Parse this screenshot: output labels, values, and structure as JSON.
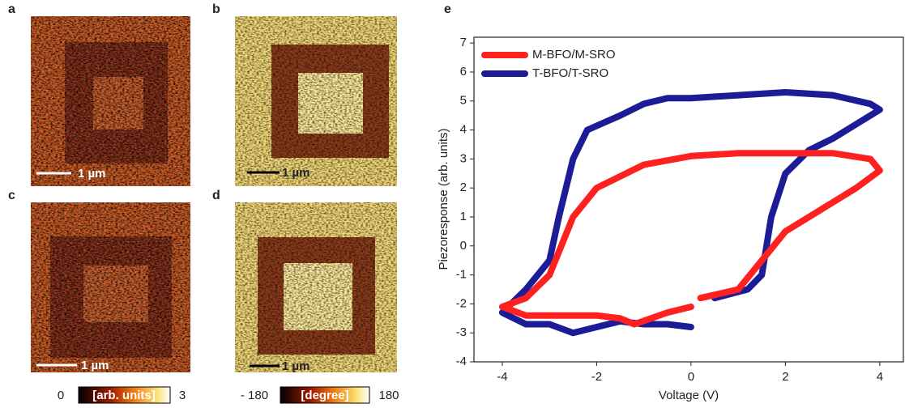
{
  "panels": [
    {
      "label": "a",
      "scale_bar": "1 µm"
    },
    {
      "label": "b",
      "scale_bar": "1 µm"
    },
    {
      "label": "c",
      "scale_bar": "1 µm"
    },
    {
      "label": "d",
      "scale_bar": "1 µm"
    }
  ],
  "colorbars": [
    {
      "min": 0,
      "label": "[arb. units]",
      "max": 3
    },
    {
      "min": {
        "value": -180,
        "label": "- 180"
      },
      "label": "[degree]",
      "max": 180
    }
  ],
  "chart_data": {
    "type": "line",
    "panel_label": "e",
    "x_label": "Voltage (V)",
    "y_label": "Piezoresponse (arb. units)",
    "xlim": [
      -4.6,
      4.5
    ],
    "ylim": [
      -4,
      7.2
    ],
    "xticks": [
      -4,
      -2,
      0,
      2,
      4
    ],
    "yticks": [
      -4,
      -3,
      -2,
      -1,
      0,
      1,
      2,
      3,
      4,
      5,
      6,
      7
    ],
    "legend": "upper left",
    "series": [
      {
        "name": "M-BFO/M-SRO",
        "color": "#ff2020",
        "x": [
          0.2,
          1,
          1.5,
          2,
          2.5,
          3,
          3.5,
          4,
          3.8,
          3,
          2,
          1,
          0,
          -1,
          -2,
          -2.5,
          -3,
          -3.5,
          -4,
          -3.5,
          -3,
          -2,
          -1.5,
          -1.2,
          -0.5,
          0
        ],
        "values": [
          -1.8,
          -1.5,
          -0.5,
          0.5,
          1,
          1.5,
          2,
          2.6,
          3,
          3.2,
          3.2,
          3.2,
          3.1,
          2.8,
          2,
          1,
          -1,
          -1.8,
          -2.1,
          -2.4,
          -2.4,
          -2.4,
          -2.5,
          -2.7,
          -2.3,
          -2.1
        ]
      },
      {
        "name": "T-BFO/T-SRO",
        "color": "#1c1c96",
        "x": [
          0,
          -0.5,
          -1,
          -1.5,
          -2,
          -2.5,
          -3,
          -3.5,
          -4,
          -3.5,
          -3,
          -2.8,
          -2.5,
          -2.2,
          -1.5,
          -1,
          -0.5,
          0,
          1,
          2,
          3,
          3.8,
          4,
          3.5,
          3,
          2.5,
          2,
          1.7,
          1.5,
          1.2,
          0.5
        ],
        "values": [
          -2.8,
          -2.7,
          -2.7,
          -2.6,
          -2.8,
          -3,
          -2.7,
          -2.7,
          -2.3,
          -1.5,
          -0.5,
          1,
          3,
          4,
          4.5,
          4.9,
          5.1,
          5.1,
          5.2,
          5.3,
          5.2,
          4.9,
          4.7,
          4.2,
          3.7,
          3.3,
          2.5,
          1,
          -1,
          -1.5,
          -1.8
        ]
      }
    ]
  }
}
